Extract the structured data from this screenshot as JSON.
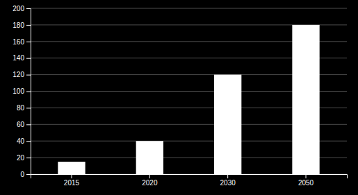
{
  "chart_data": {
    "type": "bar",
    "categories": [
      "2015",
      "2020",
      "2030",
      "2050"
    ],
    "values": [
      15,
      40,
      120,
      180
    ],
    "color": "#ffffff",
    "ylim": [
      0,
      200
    ],
    "yticks": [
      0,
      20,
      40,
      60,
      80,
      100,
      120,
      140,
      160,
      180,
      200
    ],
    "grid": true
  }
}
